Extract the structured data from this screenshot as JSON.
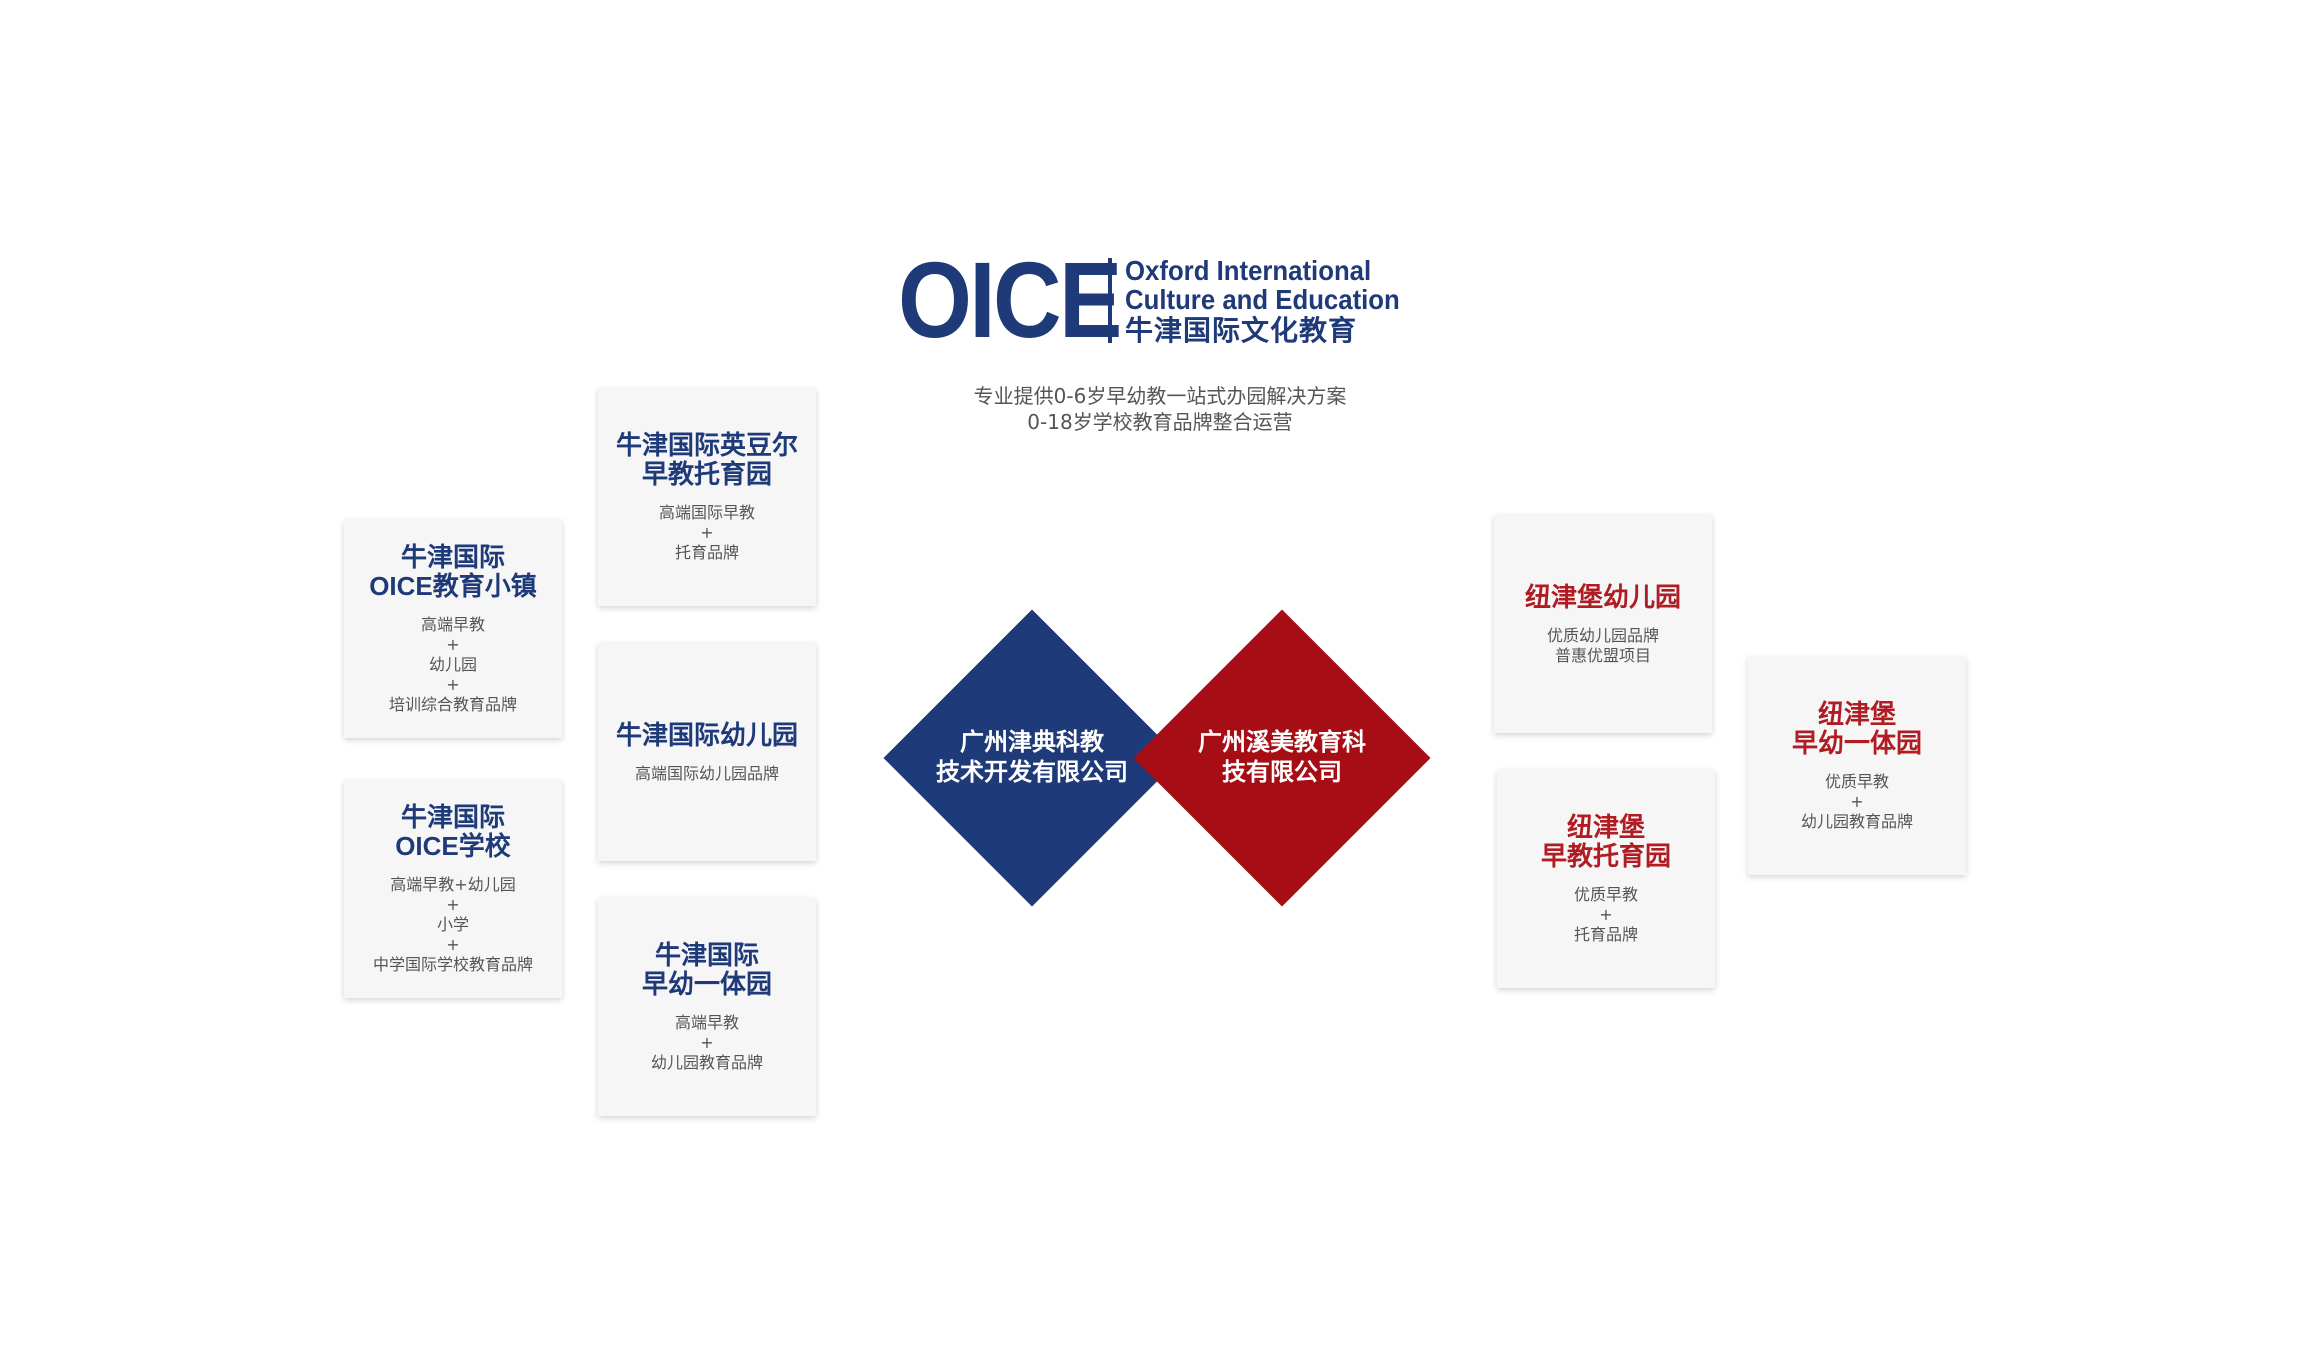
{
  "logo": {
    "mark": "OICE",
    "en_line1": "Oxford International",
    "en_line2": "Culture  and  Education",
    "cn": "牛津国际文化教育"
  },
  "tagline": {
    "line1": "专业提供0-6岁早幼教一站式办园解决方案",
    "line2": "0-18岁学校教育品牌整合运营"
  },
  "colors": {
    "brand_blue": "#1f3a78",
    "brand_red": "#a60d15"
  },
  "companies": [
    {
      "line1": "广州津典科教",
      "line2": "技术开发有限公司"
    },
    {
      "line1": "广州溪美教育科",
      "line2": "技有限公司"
    }
  ],
  "left_brands": [
    {
      "title1": "牛津国际英豆尔",
      "title2": "早教托育园",
      "desc": [
        "高端国际早教",
        "+",
        "托育品牌"
      ]
    },
    {
      "title1": "牛津国际",
      "title2": "OICE教育小镇",
      "desc": [
        "高端早教",
        "+",
        "幼儿园",
        "+",
        "培训综合教育品牌"
      ]
    },
    {
      "title1": "牛津国际幼儿园",
      "title2": "",
      "desc": [
        "高端国际幼儿园品牌"
      ]
    },
    {
      "title1": "牛津国际",
      "title2": "OICE学校",
      "desc": [
        "高端早教+幼儿园",
        "+",
        "小学",
        "+",
        "中学国际学校教育品牌"
      ]
    },
    {
      "title1": "牛津国际",
      "title2": "早幼一体园",
      "desc": [
        "高端早教",
        "+",
        "幼儿园教育品牌"
      ]
    }
  ],
  "right_brands": [
    {
      "title1": "纽津堡幼儿园",
      "title2": "",
      "desc": [
        "优质幼儿园品牌",
        "普惠优盟项目"
      ]
    },
    {
      "title1": "纽津堡",
      "title2": "早幼一体园",
      "desc": [
        "优质早教",
        "+",
        "幼儿园教育品牌"
      ]
    },
    {
      "title1": "纽津堡",
      "title2": "早教托育园",
      "desc": [
        "优质早教",
        "+",
        "托育品牌"
      ]
    }
  ]
}
